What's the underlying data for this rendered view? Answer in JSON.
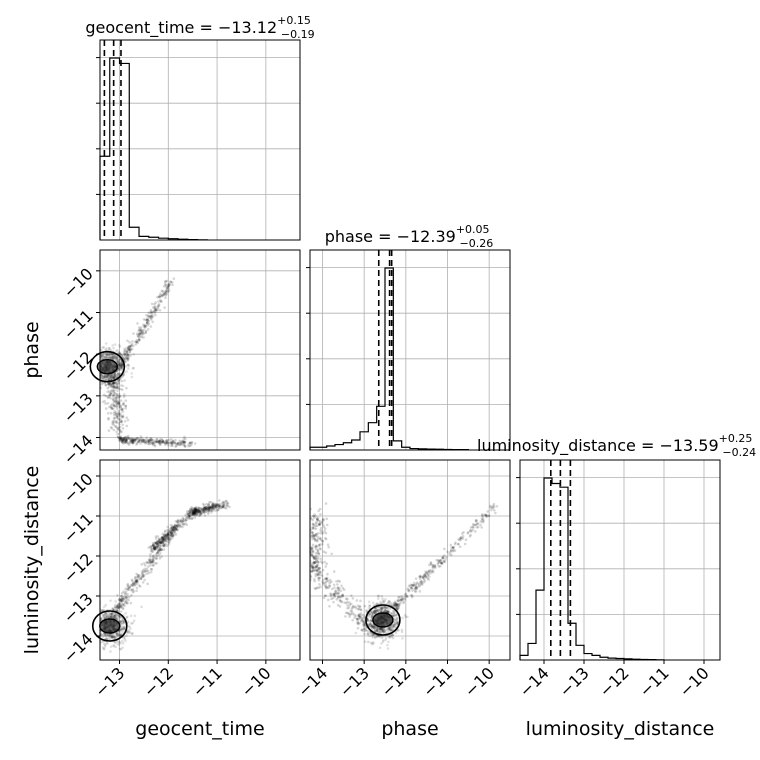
{
  "chart_data": {
    "type": "corner",
    "parameters": [
      "geocent_time",
      "phase",
      "luminosity_distance"
    ],
    "ranges": {
      "geocent_time": [
        -13.4,
        -9.3
      ],
      "phase": [
        -14.3,
        -9.5
      ],
      "luminosity_distance": [
        -14.6,
        -9.6
      ]
    },
    "grid": true,
    "ticks": {
      "geocent_time": {
        "values": [
          -13,
          -12,
          -11,
          -10
        ],
        "labels": [
          "−13",
          "−12",
          "−11",
          "−10"
        ]
      },
      "phase": {
        "values": [
          -14,
          -13,
          -12,
          -11,
          -10
        ],
        "labels": [
          "−14",
          "−13",
          "−12",
          "−11",
          "−10"
        ]
      },
      "luminosity_distance": {
        "values": [
          -14,
          -13,
          -12,
          -11,
          -10
        ],
        "labels": [
          "−14",
          "−13",
          "−12",
          "−11",
          "−10"
        ]
      }
    },
    "diagonal": [
      {
        "parameter": "geocent_time",
        "title": {
          "prefix": "geocent_time = ",
          "median": "−13.12",
          "plus": "+0.15",
          "minus": "−0.19"
        },
        "bin_edges": [
          -13.4,
          -13.2,
          -13.0,
          -12.8,
          -12.6,
          -12.4,
          -12.2,
          -12.0,
          -11.8,
          -11.6,
          -11.4,
          -11.2
        ],
        "counts": [
          0.46,
          1.0,
          0.97,
          0.07,
          0.02,
          0.015,
          0.01,
          0.007,
          0.004,
          0.002,
          0.001
        ],
        "quantiles": [
          -13.31,
          -13.12,
          -12.97
        ]
      },
      {
        "parameter": "phase",
        "title": {
          "prefix": "phase = ",
          "median": "−12.39",
          "plus": "+0.05",
          "minus": "−0.26"
        },
        "bin_edges": [
          -14.3,
          -14.1,
          -13.9,
          -13.7,
          -13.5,
          -13.3,
          -13.1,
          -12.9,
          -12.7,
          -12.5,
          -12.3,
          -12.1,
          -11.9,
          -11.7,
          -11.5,
          -11.3,
          -11.1,
          -10.9,
          -10.7,
          -10.5
        ],
        "counts": [
          0.015,
          0.015,
          0.022,
          0.03,
          0.04,
          0.055,
          0.1,
          0.15,
          0.24,
          1.0,
          0.05,
          0.015,
          0.008,
          0.006,
          0.005,
          0.004,
          0.003,
          0.002,
          0.002
        ],
        "quantiles": [
          -12.65,
          -12.39,
          -12.34
        ]
      },
      {
        "parameter": "luminosity_distance",
        "title": {
          "prefix": "luminosity_distance = ",
          "median": "−13.59",
          "plus": "+0.25",
          "minus": "−0.24"
        },
        "bin_edges": [
          -14.6,
          -14.4,
          -14.2,
          -14.0,
          -13.8,
          -13.6,
          -13.4,
          -13.2,
          -13.0,
          -12.8,
          -12.6,
          -12.4,
          -12.2,
          -12.0,
          -11.8,
          -11.6,
          -11.4,
          -11.2,
          -11.0
        ],
        "counts": [
          0.025,
          0.09,
          0.38,
          0.99,
          0.96,
          0.94,
          0.2,
          0.08,
          0.035,
          0.025,
          0.015,
          0.01,
          0.008,
          0.006,
          0.004,
          0.003,
          0.002,
          0.001
        ],
        "quantiles": [
          -13.83,
          -13.59,
          -13.34
        ]
      }
    ],
    "pairs": [
      {
        "x": "geocent_time",
        "y": "phase",
        "description": "dense cluster near (-13.2,-12.3) with a diagonal arm to upper right and a branch down to phase -14",
        "cluster": [
          -13.25,
          -12.3
        ],
        "arms": [
          {
            "from": [
              -13.0,
              -12.3
            ],
            "to": [
              -11.9,
              -10.2
            ],
            "spread": 0.05
          },
          {
            "from": [
              -13.15,
              -12.5
            ],
            "to": [
              -13.0,
              -13.9
            ],
            "spread": 0.1
          },
          {
            "from": [
              -13.0,
              -14.05
            ],
            "to": [
              -11.5,
              -14.15
            ],
            "spread": 0.04
          }
        ]
      },
      {
        "x": "geocent_time",
        "y": "luminosity_distance",
        "description": "dense cluster near (-13.25,-13.8) with a thin diagonal arm to upper right",
        "cluster": [
          -13.2,
          -13.75
        ],
        "arms": [
          {
            "from": [
              -13.1,
              -13.4
            ],
            "to": [
              -11.9,
              -11.4
            ],
            "spread": 0.06
          },
          {
            "from": [
              -12.3,
              -11.8
            ],
            "to": [
              -11.5,
              -10.9
            ],
            "spread": 0.05
          },
          {
            "from": [
              -11.5,
              -10.9
            ],
            "to": [
              -10.8,
              -10.7
            ],
            "spread": 0.05
          }
        ]
      },
      {
        "x": "phase",
        "y": "luminosity_distance",
        "description": "V-shaped distribution with a dense blob near (-12.55,-13.6)",
        "cluster": [
          -12.55,
          -13.6
        ],
        "arms": [
          {
            "from": [
              -12.3,
              -13.3
            ],
            "to": [
              -9.8,
              -10.7
            ],
            "spread": 0.06
          },
          {
            "from": [
              -12.7,
              -13.9
            ],
            "to": [
              -14.2,
              -12.4
            ],
            "spread": 0.12
          },
          {
            "from": [
              -14.2,
              -12.4
            ],
            "to": [
              -14.2,
              -10.9
            ],
            "spread": 0.15
          }
        ]
      }
    ],
    "axis_labels": {
      "x": [
        "geocent_time",
        "phase",
        "luminosity_distance"
      ],
      "y": [
        "phase",
        "luminosity_distance"
      ]
    }
  }
}
